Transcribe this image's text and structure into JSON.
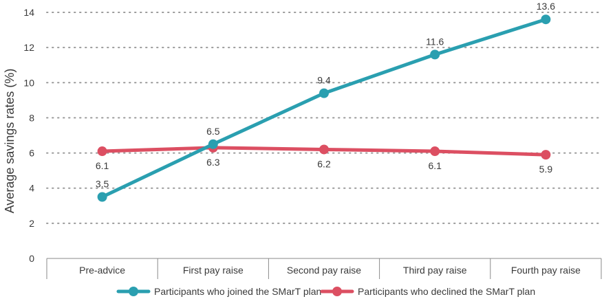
{
  "chart_data": {
    "type": "line",
    "categories": [
      "Pre-advice",
      "First pay raise",
      "Second pay raise",
      "Third pay raise",
      "Fourth pay raise"
    ],
    "series": [
      {
        "name": "Participants who joined the SMarT plan",
        "values": [
          3.5,
          6.5,
          9.4,
          11.6,
          13.6
        ],
        "labels": [
          "3.5",
          "6.5",
          "9.4",
          "11.6",
          "13.6"
        ],
        "color": "#2a9fb0"
      },
      {
        "name": "Participants who declined the SMarT plan",
        "values": [
          6.1,
          6.3,
          6.2,
          6.1,
          5.9
        ],
        "labels": [
          "6.1",
          "6.3",
          "6.2",
          "6.1",
          "5.9"
        ],
        "color": "#dc4f62"
      }
    ],
    "ylabel": "Average savings rates (%)",
    "xlabel": "",
    "ylim": [
      0,
      14
    ],
    "yticks": [
      "0",
      "2",
      "4",
      "6",
      "8",
      "10",
      "12",
      "14"
    ],
    "grid": true,
    "legend": "bottom"
  }
}
